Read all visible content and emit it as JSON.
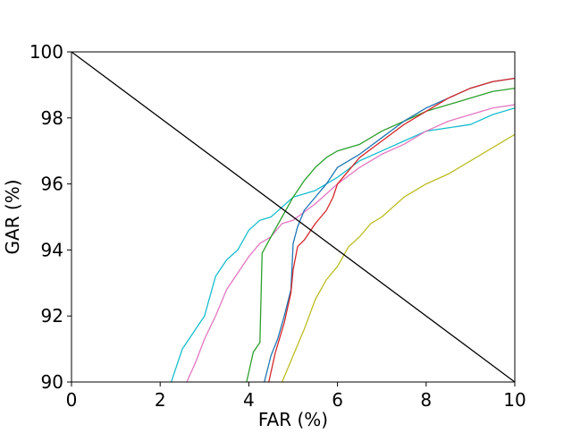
{
  "chart_data": {
    "type": "line",
    "title": "",
    "xlabel": "FAR (%)",
    "ylabel": "GAR (%)",
    "xlim": [
      0,
      10
    ],
    "ylim": [
      90,
      100
    ],
    "xticks": [
      0,
      2,
      4,
      6,
      8,
      10
    ],
    "yticks": [
      90,
      92,
      94,
      96,
      98,
      100
    ],
    "grid": false,
    "legend": "none",
    "series": [
      {
        "color": "#17becf",
        "x": [
          2.25,
          2.5,
          2.75,
          3.0,
          3.25,
          3.5,
          3.75,
          4.0,
          4.25,
          4.5,
          4.75,
          5.0,
          5.5,
          6.0,
          6.5,
          7.0,
          7.5,
          8.0,
          8.5,
          9.0,
          9.5,
          10.0
        ],
        "y": [
          90.0,
          91.0,
          91.5,
          92.0,
          93.2,
          93.7,
          94.0,
          94.6,
          94.9,
          95.0,
          95.3,
          95.6,
          95.8,
          96.2,
          96.7,
          97.0,
          97.3,
          97.6,
          97.7,
          97.8,
          98.1,
          98.3
        ]
      },
      {
        "color": "#e377c2",
        "x": [
          2.6,
          2.8,
          3.0,
          3.25,
          3.5,
          3.75,
          4.0,
          4.25,
          4.5,
          4.75,
          5.0,
          5.5,
          6.0,
          6.5,
          7.0,
          7.5,
          8.0,
          8.5,
          9.0,
          9.5,
          10.0
        ],
        "y": [
          90.0,
          90.6,
          91.3,
          92.0,
          92.8,
          93.3,
          93.8,
          94.2,
          94.4,
          94.8,
          94.9,
          95.4,
          96.0,
          96.5,
          96.9,
          97.2,
          97.6,
          97.9,
          98.1,
          98.3,
          98.4
        ]
      },
      {
        "color": "#2ca02c",
        "x": [
          3.95,
          4.1,
          4.25,
          4.3,
          4.5,
          4.75,
          5.0,
          5.25,
          5.5,
          5.75,
          6.0,
          6.5,
          7.0,
          7.5,
          8.0,
          8.5,
          9.0,
          9.5,
          10.0
        ],
        "y": [
          90.0,
          90.9,
          91.2,
          93.9,
          94.4,
          95.0,
          95.6,
          96.1,
          96.5,
          96.8,
          97.0,
          97.2,
          97.6,
          97.9,
          98.2,
          98.4,
          98.6,
          98.8,
          98.9
        ]
      },
      {
        "color": "#1f77b4",
        "x": [
          4.35,
          4.5,
          4.65,
          4.8,
          4.95,
          5.0,
          5.1,
          5.25,
          5.5,
          5.75,
          6.0,
          6.5,
          7.0,
          7.5,
          8.0,
          8.5,
          9.0,
          9.5,
          10.0
        ],
        "y": [
          90.0,
          90.8,
          91.3,
          92.0,
          92.8,
          94.2,
          94.7,
          95.2,
          95.6,
          96.0,
          96.5,
          96.9,
          97.4,
          97.9,
          98.3,
          98.6,
          98.9,
          99.1,
          99.2
        ]
      },
      {
        "color": "#d62728",
        "x": [
          4.45,
          4.6,
          4.8,
          4.95,
          5.0,
          5.1,
          5.25,
          5.5,
          5.75,
          5.9,
          6.0,
          6.25,
          6.5,
          7.0,
          7.5,
          8.0,
          8.5,
          9.0,
          9.5,
          10.0
        ],
        "y": [
          90.0,
          90.9,
          91.8,
          92.7,
          93.4,
          94.1,
          94.3,
          94.8,
          95.2,
          95.6,
          96.0,
          96.4,
          96.8,
          97.3,
          97.8,
          98.2,
          98.6,
          98.9,
          99.1,
          99.2
        ]
      },
      {
        "color": "#bcbd22",
        "x": [
          4.75,
          5.0,
          5.25,
          5.5,
          5.75,
          6.0,
          6.25,
          6.5,
          6.75,
          7.0,
          7.5,
          8.0,
          8.5,
          9.0,
          9.5,
          10.0
        ],
        "y": [
          90.0,
          90.8,
          91.6,
          92.5,
          93.1,
          93.5,
          94.1,
          94.4,
          94.8,
          95.0,
          95.6,
          96.0,
          96.3,
          96.7,
          97.1,
          97.5
        ]
      },
      {
        "color": "#000000",
        "x": [
          0,
          10
        ],
        "y": [
          100,
          90
        ]
      }
    ]
  }
}
